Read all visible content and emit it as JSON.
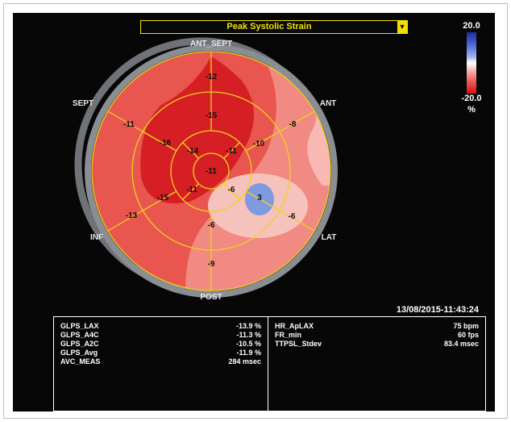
{
  "title": "Peak Systolic Strain",
  "colorScale": {
    "max": "20.0",
    "min": "-20.0",
    "unit": "%"
  },
  "wallLabels": {
    "top": "ANT_SEPT",
    "upperLeft": "SEPT",
    "upperRight": "ANT",
    "lowerLeft": "INF",
    "lowerRight": "LAT",
    "bottom": "POST"
  },
  "segments": [
    {
      "id": "basal-ant-sept",
      "value": "-12"
    },
    {
      "id": "basal-ant",
      "value": "-8"
    },
    {
      "id": "basal-lat",
      "value": "-6"
    },
    {
      "id": "basal-post",
      "value": "-9"
    },
    {
      "id": "basal-inf",
      "value": "-13"
    },
    {
      "id": "basal-sept",
      "value": "-11"
    },
    {
      "id": "mid-ant-sept",
      "value": "-15"
    },
    {
      "id": "mid-ant",
      "value": "-10"
    },
    {
      "id": "mid-lat",
      "value": "3"
    },
    {
      "id": "mid-post",
      "value": "-6"
    },
    {
      "id": "mid-inf",
      "value": "-15"
    },
    {
      "id": "mid-sept",
      "value": "-16"
    },
    {
      "id": "apical-ant",
      "value": "-14"
    },
    {
      "id": "apical-lat",
      "value": "-11"
    },
    {
      "id": "apical-post",
      "value": "-6"
    },
    {
      "id": "apical-sept",
      "value": "-11"
    },
    {
      "id": "apex",
      "value": "-11"
    }
  ],
  "timestamp": "13/08/2015-11:43:24",
  "leftMetrics": [
    {
      "label": "GLPS_LAX",
      "value": "-13.9 %"
    },
    {
      "label": "GLPS_A4C",
      "value": "-11.3 %"
    },
    {
      "label": "GLPS_A2C",
      "value": "-10.5 %"
    },
    {
      "label": "GLPS_Avg",
      "value": "-11.9 %"
    },
    {
      "label": "AVC_MEAS",
      "value": "284 msec"
    }
  ],
  "rightMetrics": [
    {
      "label": "HR_ApLAX",
      "value": "75 bpm"
    },
    {
      "label": "FR_min",
      "value": "60 fps"
    },
    {
      "label": "TTPSL_Stdev",
      "value": "83.4 msec"
    }
  ]
}
